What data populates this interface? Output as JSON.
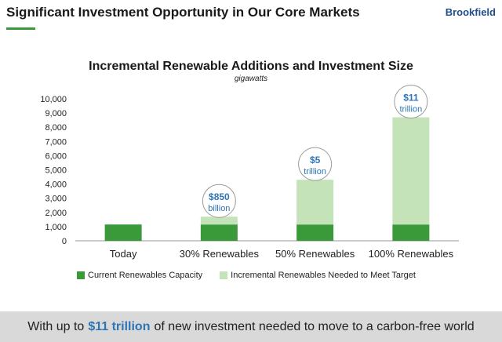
{
  "header": {
    "title": "Significant Investment Opportunity in Our Core Markets",
    "brand": "Brookfield"
  },
  "colors": {
    "accent": "#3a9a3a",
    "current": "#3a9a3a",
    "incremental": "#c5e3b9",
    "callout_text": "#2e75b6"
  },
  "chart_data": {
    "type": "bar",
    "stacked": true,
    "title": "Incremental Renewable Additions and Investment Size",
    "subtitle": "gigawatts",
    "categories": [
      "Today",
      "30% Renewables",
      "50% Renewables",
      "100% Renewables"
    ],
    "series": [
      {
        "name": "Current Renewables Capacity",
        "values": [
          1150,
          1150,
          1150,
          1150
        ]
      },
      {
        "name": "Incremental Renewables Needed to Meet Target",
        "values": [
          0,
          550,
          3150,
          7550
        ]
      }
    ],
    "ylim": [
      0,
      10000
    ],
    "yticks": [
      "0",
      "1,000",
      "2,000",
      "3,000",
      "4,000",
      "5,000",
      "6,000",
      "7,000",
      "8,000",
      "9,000",
      "10,000"
    ],
    "callouts": [
      {
        "category_index": 1,
        "value_line": "$850",
        "unit_line": "billion"
      },
      {
        "category_index": 2,
        "value_line": "$5",
        "unit_line": "trillion"
      },
      {
        "category_index": 3,
        "value_line": "$11",
        "unit_line": "trillion"
      }
    ],
    "legend_position": "bottom"
  },
  "legend": {
    "current_label": "Current Renewables Capacity",
    "incremental_label": "Incremental Renewables Needed to Meet Target"
  },
  "footer": {
    "prefix": "With up to",
    "highlight": "$11 trillion",
    "suffix": "of new investment needed to move to a carbon-free world"
  }
}
